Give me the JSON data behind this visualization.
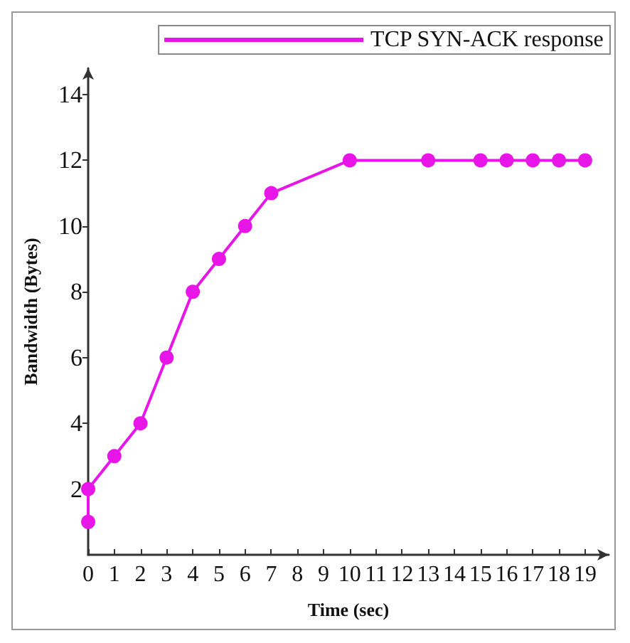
{
  "chart_data": {
    "type": "line",
    "xlabel": "Time (sec)",
    "ylabel": "Bandwidth (Bytes)",
    "x": [
      0,
      0,
      1,
      2,
      3,
      4,
      5,
      6,
      7,
      10,
      13,
      15,
      16,
      17,
      18,
      19
    ],
    "series": [
      {
        "name": "TCP SYN-ACK response",
        "color": "#e815e8",
        "values": [
          1,
          2,
          3,
          4,
          6,
          8,
          9,
          10,
          11,
          12,
          12,
          12,
          12,
          12,
          12,
          12
        ]
      }
    ],
    "xlim": [
      0,
      19.9
    ],
    "xticks": [
      0,
      1,
      2,
      3,
      4,
      5,
      6,
      7,
      8,
      9,
      10,
      11,
      12,
      13,
      14,
      15,
      16,
      17,
      18,
      19
    ],
    "ylim": [
      0,
      14.8
    ],
    "yticks": [
      2,
      4,
      6,
      8,
      10,
      12,
      14
    ],
    "grid": false,
    "legend": "top right",
    "marker": "circle",
    "line_style": "solid"
  }
}
